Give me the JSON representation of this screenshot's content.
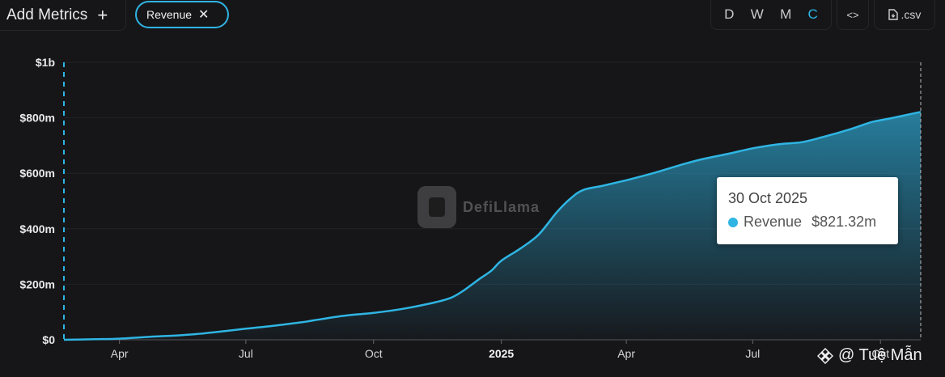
{
  "toolbar": {
    "add_metrics_label": "Add Metrics",
    "add_icon": "plus-icon",
    "metric_pill_label": "Revenue",
    "close_icon": "close-icon",
    "periods": [
      "D",
      "W",
      "M",
      "C"
    ],
    "active_period": "C",
    "embed_label": "<>",
    "csv_label": ".csv"
  },
  "watermark": {
    "text": "DefiLlama"
  },
  "tooltip": {
    "date": "30 Oct 2025",
    "series": "Revenue",
    "value": "$821.32m"
  },
  "credit": {
    "text": "@ Tuệ Mẫn"
  },
  "colors": {
    "line": "#2fb5e3",
    "background": "#161619",
    "pill_border": "#2fb5e3"
  },
  "chart_data": {
    "type": "area",
    "series": [
      {
        "name": "Revenue"
      }
    ],
    "y_tick_labels": [
      "$0",
      "$200m",
      "$400m",
      "$600m",
      "$800m",
      "$1b"
    ],
    "y_tick_values": [
      0,
      200,
      400,
      600,
      800,
      1000
    ],
    "ylim": [
      0,
      1000
    ],
    "x_tick_labels": [
      "Apr",
      "Jul",
      "Oct",
      "2025",
      "Apr",
      "Jul",
      "Oct"
    ],
    "x_tick_dates": [
      "2024-04-01",
      "2024-07-01",
      "2024-10-01",
      "2025-01-01",
      "2025-04-01",
      "2025-07-01",
      "2025-10-01"
    ],
    "x_range": [
      "2024-02-21",
      "2025-10-30"
    ],
    "grid": true,
    "points": [
      [
        "2024-02-21",
        0
      ],
      [
        "2024-03-15",
        2
      ],
      [
        "2024-04-01",
        4
      ],
      [
        "2024-04-20",
        10
      ],
      [
        "2024-05-10",
        15
      ],
      [
        "2024-05-25",
        20
      ],
      [
        "2024-06-10",
        28
      ],
      [
        "2024-07-01",
        40
      ],
      [
        "2024-07-20",
        50
      ],
      [
        "2024-08-10",
        63
      ],
      [
        "2024-08-25",
        75
      ],
      [
        "2024-09-10",
        87
      ],
      [
        "2024-10-01",
        97
      ],
      [
        "2024-10-20",
        110
      ],
      [
        "2024-11-10",
        130
      ],
      [
        "2024-11-25",
        150
      ],
      [
        "2024-12-05",
        178
      ],
      [
        "2024-12-15",
        215
      ],
      [
        "2024-12-25",
        250
      ],
      [
        "2025-01-01",
        285
      ],
      [
        "2025-01-15",
        330
      ],
      [
        "2025-01-28",
        380
      ],
      [
        "2025-02-10",
        460
      ],
      [
        "2025-02-20",
        510
      ],
      [
        "2025-03-01",
        540
      ],
      [
        "2025-03-15",
        555
      ],
      [
        "2025-04-01",
        575
      ],
      [
        "2025-04-20",
        600
      ],
      [
        "2025-05-10",
        630
      ],
      [
        "2025-05-25",
        650
      ],
      [
        "2025-06-15",
        672
      ],
      [
        "2025-07-01",
        690
      ],
      [
        "2025-07-20",
        705
      ],
      [
        "2025-08-05",
        712
      ],
      [
        "2025-08-20",
        730
      ],
      [
        "2025-09-10",
        760
      ],
      [
        "2025-09-25",
        785
      ],
      [
        "2025-10-10",
        800
      ],
      [
        "2025-10-30",
        821.32
      ]
    ]
  }
}
